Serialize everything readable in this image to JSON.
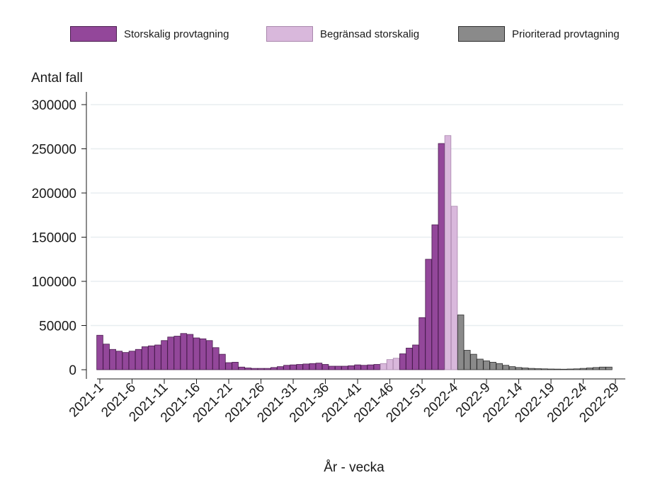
{
  "chart_data": {
    "type": "bar",
    "title": "",
    "ylabel": "Antal fall",
    "xlabel": "År - vecka",
    "ylim": [
      0,
      300000
    ],
    "yticks": [
      0,
      50000,
      100000,
      150000,
      200000,
      250000,
      300000
    ],
    "grid": true,
    "legend_position": "top",
    "xtick_labels": [
      "2021-1",
      "2021-6",
      "2021-11",
      "2021-16",
      "2021-21",
      "2021-26",
      "2021-31",
      "2021-36",
      "2021-41",
      "2021-46",
      "2021-51",
      "2022-4",
      "2022-9",
      "2022-14",
      "2022-19",
      "2022-24",
      "2022-29"
    ],
    "legend": [
      {
        "name": "Storskalig provtagning",
        "color": "#93479a",
        "border": "#4a1d4f"
      },
      {
        "name": "Begränsad storskalig",
        "color": "#d9b8dc",
        "border": "#a987ad"
      },
      {
        "name": "Prioriterad provtagning",
        "color": "#8a8a8a",
        "border": "#2e2e2e"
      }
    ],
    "categories": [
      "2021-1",
      "2021-2",
      "2021-3",
      "2021-4",
      "2021-5",
      "2021-6",
      "2021-7",
      "2021-8",
      "2021-9",
      "2021-10",
      "2021-11",
      "2021-12",
      "2021-13",
      "2021-14",
      "2021-15",
      "2021-16",
      "2021-17",
      "2021-18",
      "2021-19",
      "2021-20",
      "2021-21",
      "2021-22",
      "2021-23",
      "2021-24",
      "2021-25",
      "2021-26",
      "2021-27",
      "2021-28",
      "2021-29",
      "2021-30",
      "2021-31",
      "2021-32",
      "2021-33",
      "2021-34",
      "2021-35",
      "2021-36",
      "2021-37",
      "2021-38",
      "2021-39",
      "2021-40",
      "2021-41",
      "2021-42",
      "2021-43",
      "2021-44",
      "2021-45",
      "2021-46",
      "2021-47",
      "2021-48",
      "2021-49",
      "2021-50",
      "2021-51",
      "2021-52",
      "2022-1",
      "2022-2",
      "2022-3",
      "2022-4",
      "2022-5",
      "2022-6",
      "2022-7",
      "2022-8",
      "2022-9",
      "2022-10",
      "2022-11",
      "2022-12",
      "2022-13",
      "2022-14",
      "2022-15",
      "2022-16",
      "2022-17",
      "2022-18",
      "2022-19",
      "2022-20",
      "2022-21",
      "2022-22",
      "2022-23",
      "2022-24",
      "2022-25",
      "2022-26",
      "2022-27",
      "2022-28"
    ],
    "values": [
      39000,
      29000,
      23000,
      21000,
      19500,
      21000,
      23000,
      26000,
      27000,
      28000,
      33000,
      37000,
      38000,
      41000,
      40000,
      36000,
      35000,
      33000,
      25000,
      17500,
      8000,
      8500,
      3000,
      2000,
      1500,
      1500,
      1500,
      2500,
      3500,
      5000,
      5500,
      6000,
      6500,
      7000,
      7500,
      6000,
      4000,
      4000,
      4000,
      4500,
      5500,
      5000,
      5500,
      6000,
      7000,
      11500,
      13000,
      18000,
      24500,
      28000,
      59000,
      125000,
      164000,
      256000,
      265000,
      185000,
      62000,
      22000,
      17500,
      12000,
      10000,
      8500,
      7000,
      5000,
      3500,
      2500,
      2000,
      1500,
      1200,
      1000,
      800,
      700,
      600,
      800,
      1000,
      1500,
      2000,
      2500,
      3000,
      3000
    ],
    "groups": [
      0,
      0,
      0,
      0,
      0,
      0,
      0,
      0,
      0,
      0,
      0,
      0,
      0,
      0,
      0,
      0,
      0,
      0,
      0,
      0,
      0,
      0,
      0,
      0,
      0,
      0,
      0,
      0,
      0,
      0,
      0,
      0,
      0,
      0,
      0,
      0,
      0,
      0,
      0,
      0,
      0,
      0,
      0,
      0,
      1,
      1,
      1,
      0,
      0,
      0,
      0,
      0,
      0,
      0,
      1,
      1,
      2,
      2,
      2,
      2,
      2,
      2,
      2,
      2,
      2,
      2,
      2,
      2,
      2,
      2,
      2,
      2,
      2,
      2,
      2,
      2,
      2,
      2,
      2,
      2
    ]
  }
}
